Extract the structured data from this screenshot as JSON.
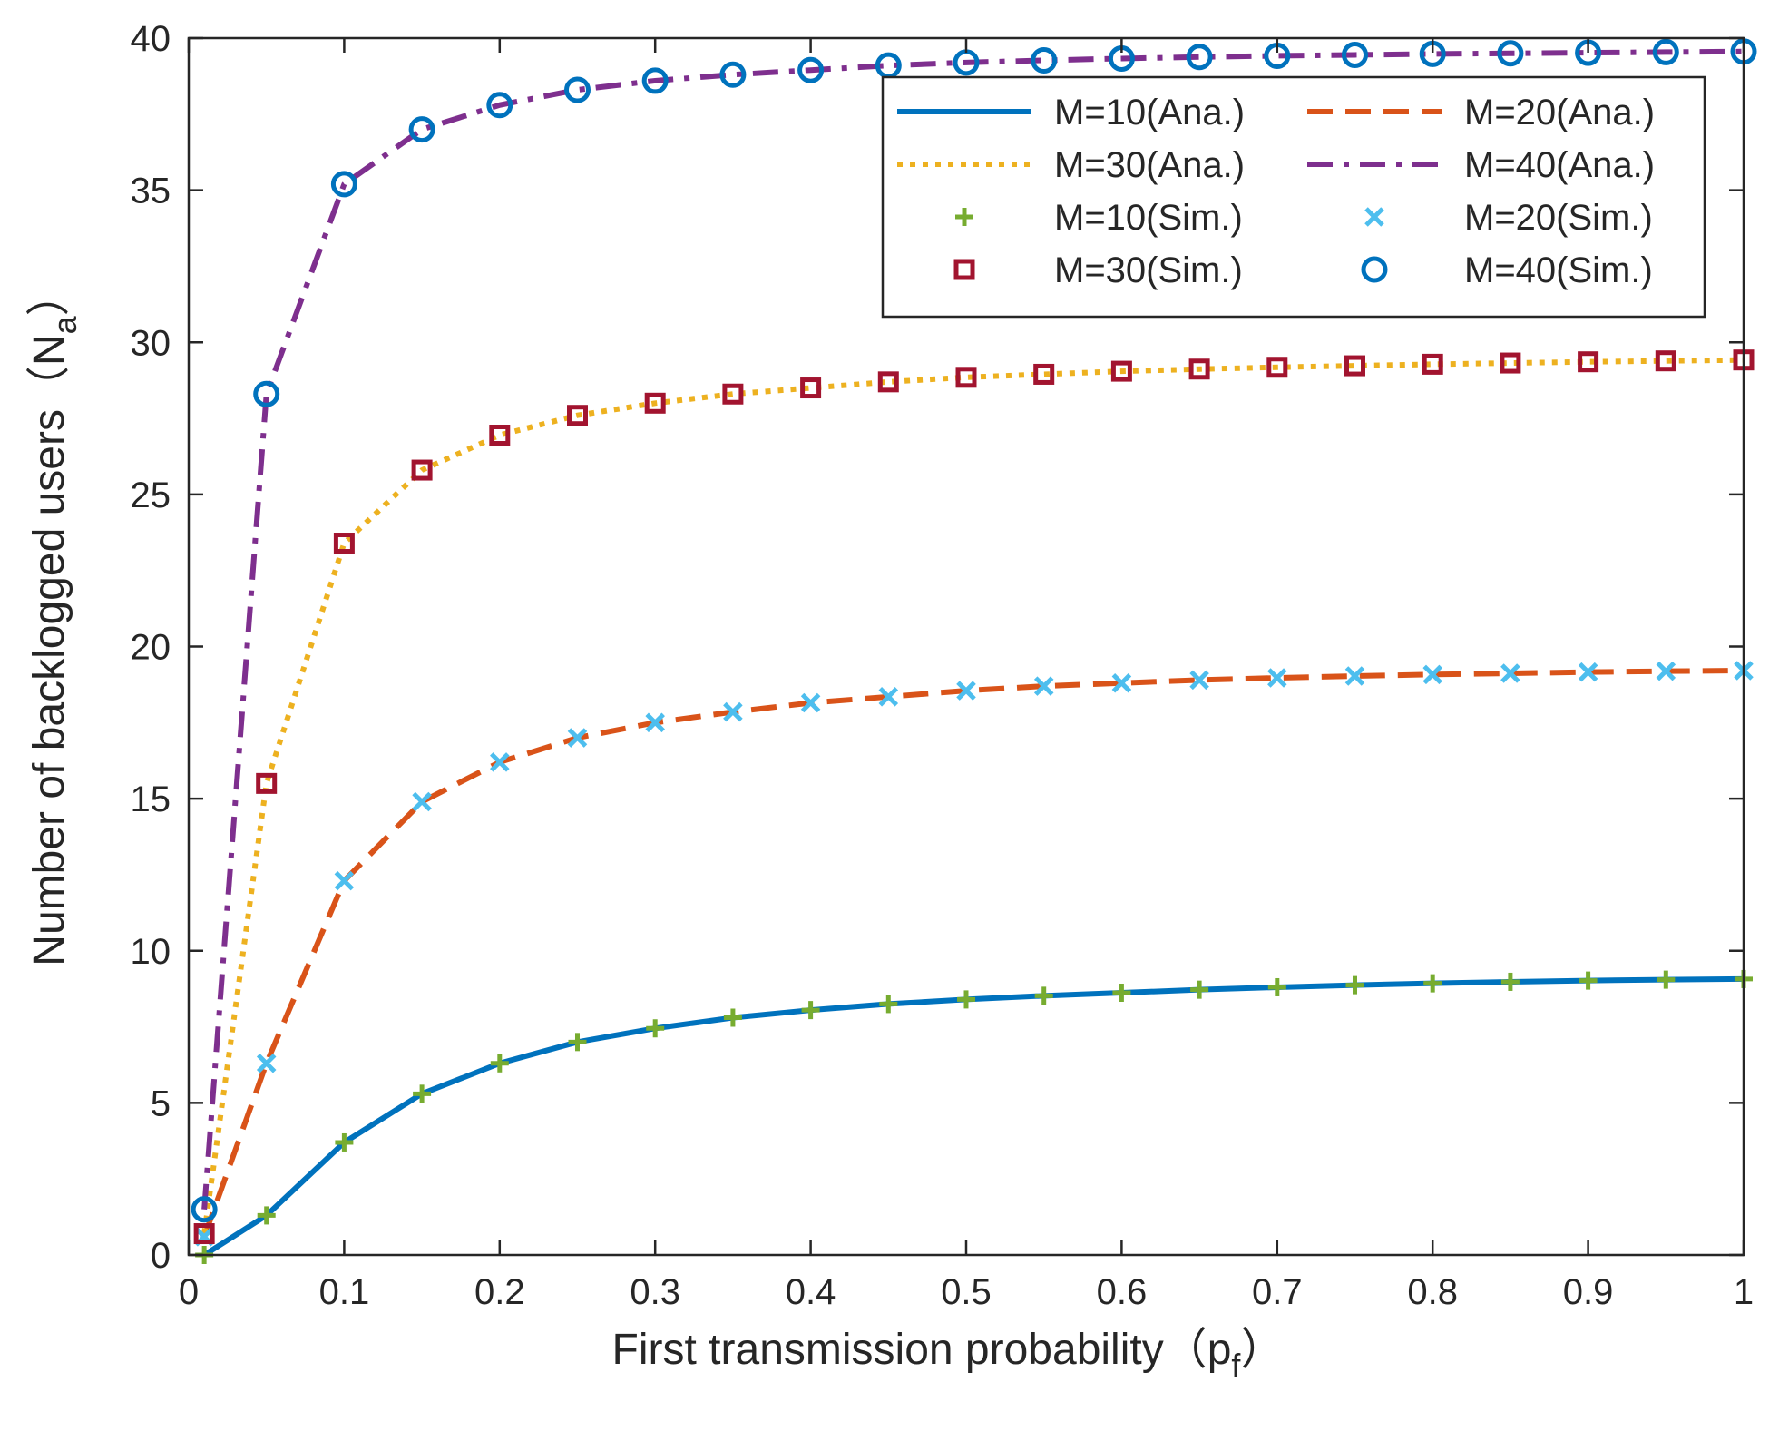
{
  "chart_data": {
    "type": "line",
    "xlabel": "First transmission probability",
    "xlabel_paren": "（p",
    "xlabel_sub": "f",
    "xlabel_close": "）",
    "ylabel": "Number of backlogged users",
    "ylabel_paren": "（N",
    "ylabel_sub": "a",
    "ylabel_close": "）",
    "xlim": [
      0,
      1
    ],
    "ylim": [
      0,
      40
    ],
    "x_ticks": [
      0,
      0.1,
      0.2,
      0.3,
      0.4,
      0.5,
      0.6,
      0.7,
      0.8,
      0.9,
      1
    ],
    "x_tick_labels": [
      "0",
      "0.1",
      "0.2",
      "0.3",
      "0.4",
      "0.5",
      "0.6",
      "0.7",
      "0.8",
      "0.9",
      "1"
    ],
    "y_ticks": [
      0,
      5,
      10,
      15,
      20,
      25,
      30,
      35,
      40
    ],
    "y_tick_labels": [
      "0",
      "5",
      "10",
      "15",
      "20",
      "25",
      "30",
      "35",
      "40"
    ],
    "grid": false,
    "legend_position": "top-right",
    "x": [
      0.01,
      0.05,
      0.1,
      0.15,
      0.2,
      0.25,
      0.3,
      0.35,
      0.4,
      0.45,
      0.5,
      0.55,
      0.6,
      0.65,
      0.7,
      0.75,
      0.8,
      0.85,
      0.9,
      0.95,
      1.0
    ],
    "series": [
      {
        "name": "M=10(Ana.)",
        "kind": "line",
        "style": "solid",
        "color": "#0072BD",
        "values": [
          0.0,
          1.3,
          3.7,
          5.3,
          6.3,
          7.0,
          7.45,
          7.8,
          8.05,
          8.25,
          8.4,
          8.52,
          8.62,
          8.72,
          8.8,
          8.87,
          8.93,
          8.98,
          9.02,
          9.05,
          9.07
        ]
      },
      {
        "name": "M=20(Ana.)",
        "kind": "line",
        "style": "dashed",
        "color": "#D95319",
        "values": [
          0.6,
          6.3,
          12.3,
          14.9,
          16.2,
          17.0,
          17.5,
          17.85,
          18.15,
          18.35,
          18.55,
          18.7,
          18.8,
          18.9,
          18.97,
          19.03,
          19.08,
          19.12,
          19.16,
          19.19,
          19.21
        ]
      },
      {
        "name": "M=30(Ana.)",
        "kind": "line",
        "style": "dotted",
        "color": "#EDB120",
        "values": [
          0.7,
          15.5,
          23.4,
          25.8,
          26.95,
          27.6,
          28.0,
          28.3,
          28.5,
          28.7,
          28.85,
          28.95,
          29.05,
          29.12,
          29.18,
          29.23,
          29.28,
          29.32,
          29.36,
          29.39,
          29.42
        ]
      },
      {
        "name": "M=40(Ana.)",
        "kind": "line",
        "style": "dashdot",
        "color": "#7E2F8E",
        "values": [
          1.5,
          28.3,
          35.2,
          37.0,
          37.8,
          38.3,
          38.6,
          38.8,
          38.95,
          39.1,
          39.2,
          39.27,
          39.33,
          39.38,
          39.42,
          39.45,
          39.48,
          39.5,
          39.52,
          39.54,
          39.56
        ]
      },
      {
        "name": "M=10(Sim.)",
        "kind": "marker",
        "marker": "plus",
        "color": "#77AC30",
        "values": [
          0.0,
          1.3,
          3.7,
          5.3,
          6.3,
          7.0,
          7.45,
          7.8,
          8.05,
          8.25,
          8.4,
          8.52,
          8.62,
          8.72,
          8.8,
          8.87,
          8.93,
          8.98,
          9.02,
          9.05,
          9.07
        ]
      },
      {
        "name": "M=20(Sim.)",
        "kind": "marker",
        "marker": "x",
        "color": "#4DBEEE",
        "values": [
          0.6,
          6.3,
          12.3,
          14.9,
          16.2,
          17.0,
          17.5,
          17.85,
          18.15,
          18.35,
          18.55,
          18.7,
          18.8,
          18.9,
          18.97,
          19.03,
          19.08,
          19.12,
          19.16,
          19.19,
          19.21
        ]
      },
      {
        "name": "M=30(Sim.)",
        "kind": "marker",
        "marker": "square",
        "color": "#A2142F",
        "values": [
          0.7,
          15.5,
          23.4,
          25.8,
          26.95,
          27.6,
          28.0,
          28.3,
          28.5,
          28.7,
          28.85,
          28.95,
          29.05,
          29.12,
          29.18,
          29.23,
          29.28,
          29.32,
          29.36,
          29.39,
          29.42
        ]
      },
      {
        "name": "M=40(Sim.)",
        "kind": "marker",
        "marker": "circle",
        "color": "#0072BD",
        "values": [
          1.5,
          28.3,
          35.2,
          37.0,
          37.8,
          38.3,
          38.6,
          38.8,
          38.95,
          39.1,
          39.2,
          39.27,
          39.33,
          39.38,
          39.42,
          39.45,
          39.48,
          39.5,
          39.52,
          39.54,
          39.56
        ]
      }
    ]
  }
}
